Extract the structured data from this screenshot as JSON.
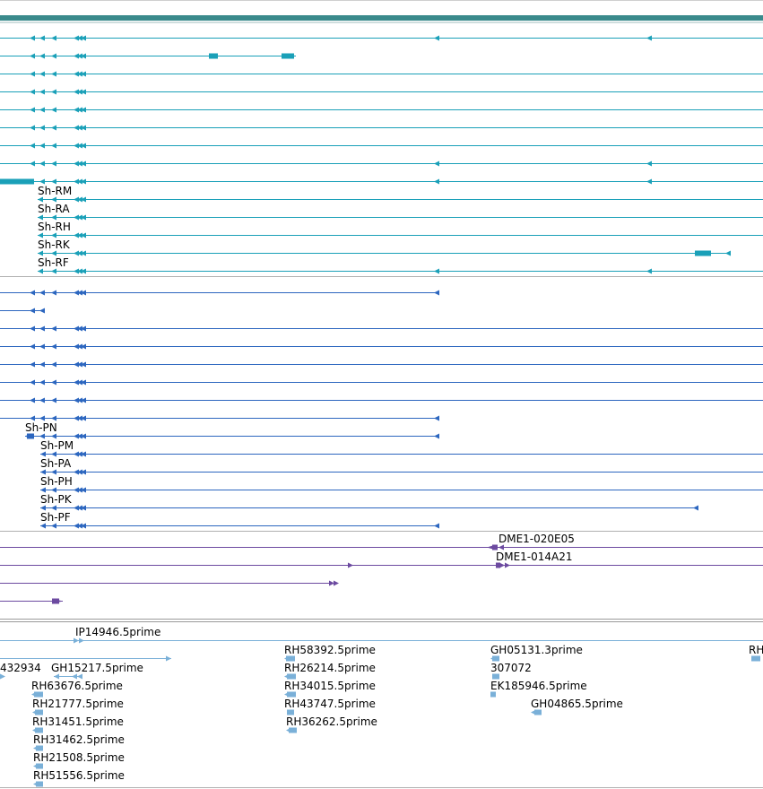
{
  "colors": {
    "header_bar": "#3a8a8c",
    "transcript_teal": "#1aa0b8",
    "protein_blue": "#2c66bf",
    "clone_purple": "#6c4aa0",
    "est_lightblue": "#7ab0d8",
    "divider_gray": "#9a9a9a"
  },
  "tracks": {
    "transcripts": {
      "labels": [
        "Sh-RM",
        "Sh-RA",
        "Sh-RH",
        "Sh-RK",
        "Sh-RF"
      ]
    },
    "proteins": {
      "labels": [
        "Sh-PN",
        "Sh-PM",
        "Sh-PA",
        "Sh-PH",
        "Sh-PK",
        "Sh-PF"
      ]
    },
    "clones": {
      "labels": [
        "DME1-020E05",
        "DME1-014A21"
      ]
    },
    "ests": {
      "labels": [
        "IP14946.5prime",
        "RH58392.5prime",
        "GH05131.3prime",
        "RH",
        "432934",
        "GH15217.5prime",
        "RH26214.5prime",
        "307072",
        "RH63676.5prime",
        "RH34015.5prime",
        "EK185946.5prime",
        "RH21777.5prime",
        "RH43747.5prime",
        "GH04865.5prime",
        "RH31451.5prime",
        "RH36262.5prime",
        "RH31462.5prime",
        "RH21508.5prime",
        "RH51556.5prime"
      ]
    }
  }
}
